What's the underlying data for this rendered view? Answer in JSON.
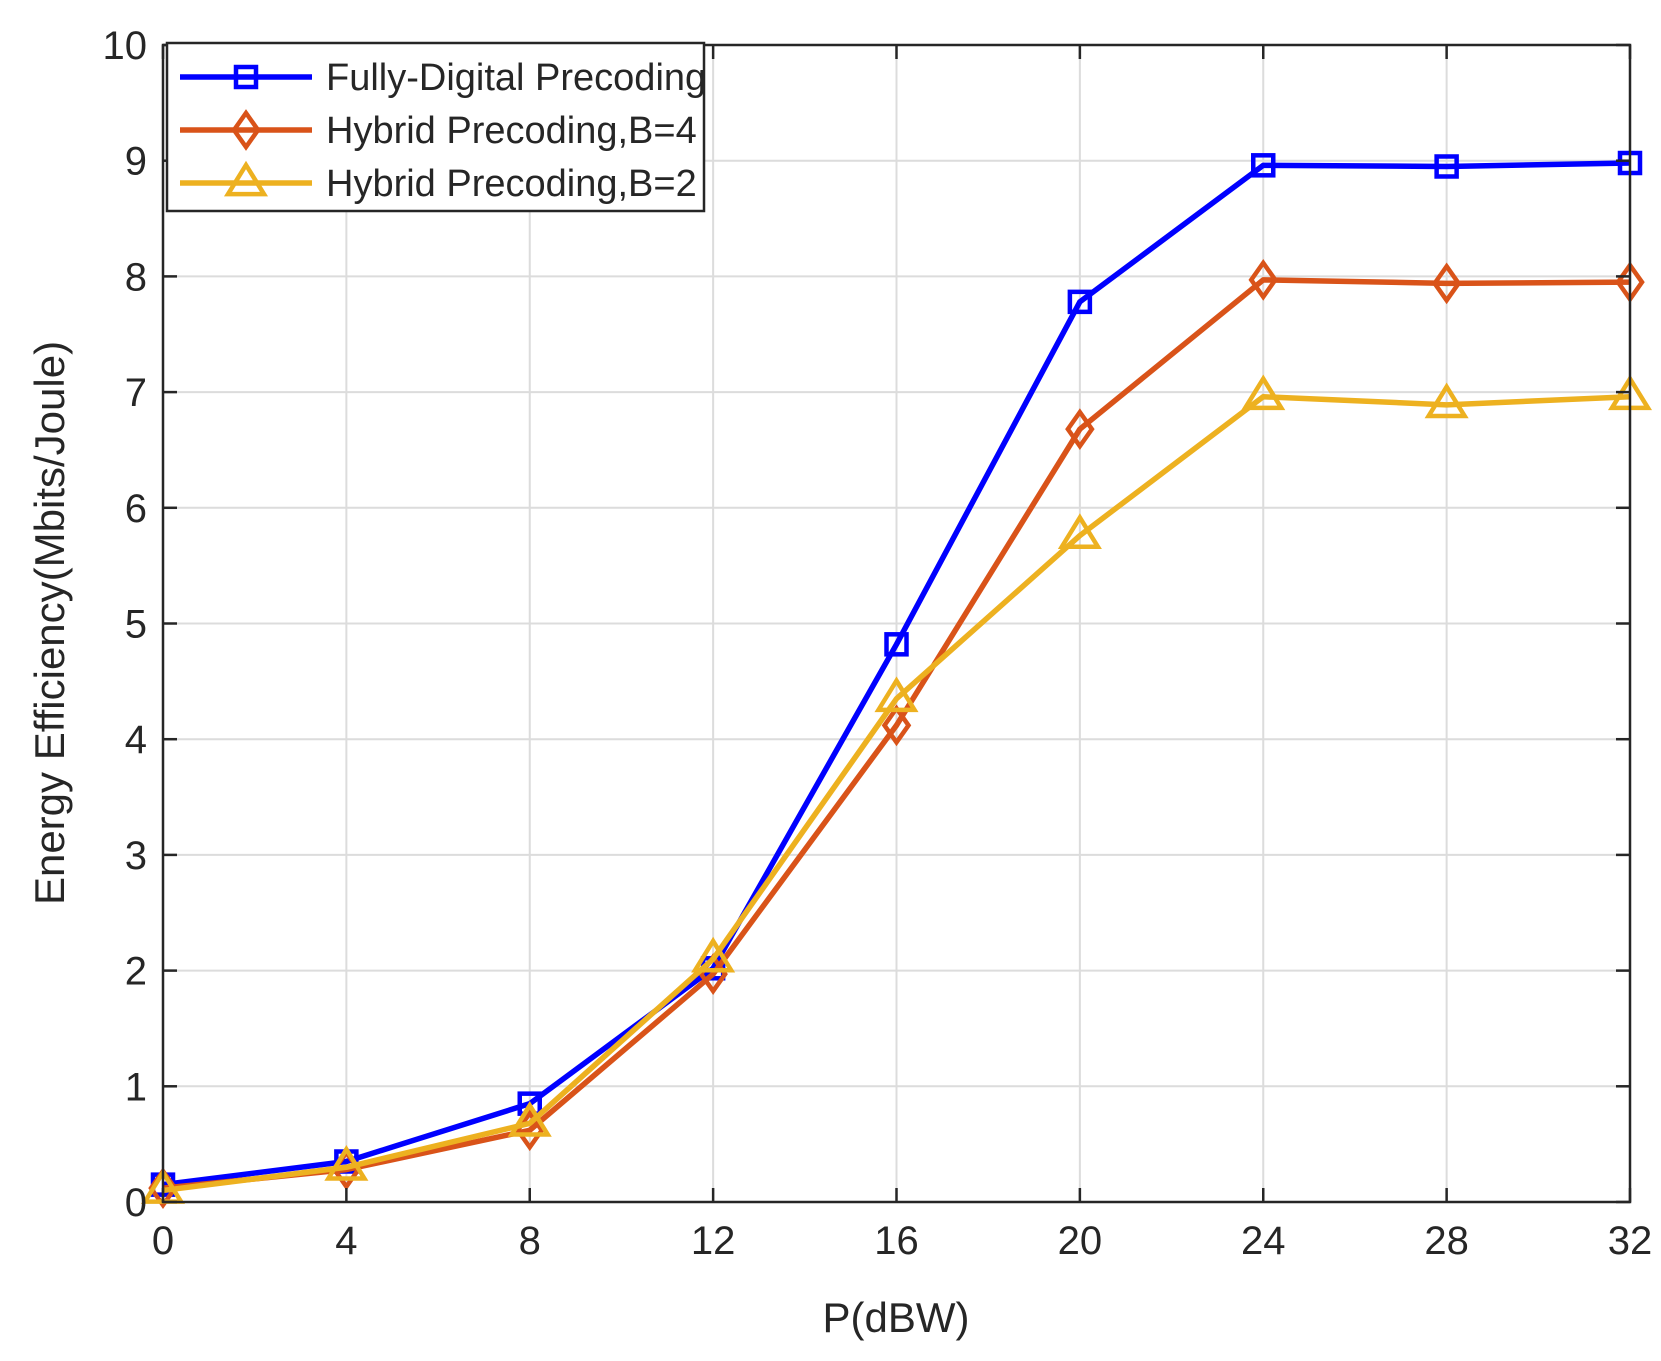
{
  "chart_data": {
    "type": "line",
    "title": "",
    "xlabel": "P(dBW)",
    "ylabel": "Energy Efficiency(Mbits/Joule)",
    "x": [
      0,
      4,
      8,
      12,
      16,
      20,
      24,
      28,
      32
    ],
    "xlim": [
      0,
      32
    ],
    "ylim": [
      0,
      10
    ],
    "xticks": [
      0,
      4,
      8,
      12,
      16,
      20,
      24,
      28,
      32
    ],
    "yticks": [
      0,
      1,
      2,
      3,
      4,
      5,
      6,
      7,
      8,
      9,
      10
    ],
    "grid": true,
    "legend_position": "top-left",
    "series": [
      {
        "name": "Fully-Digital Precoding",
        "color": "#0000ff",
        "marker": "square",
        "values": [
          0.15,
          0.35,
          0.85,
          2.02,
          4.82,
          7.78,
          8.96,
          8.95,
          8.98
        ]
      },
      {
        "name": "Hybrid Precoding,B=4",
        "color": "#d95319",
        "marker": "diamond",
        "values": [
          0.12,
          0.28,
          0.62,
          1.97,
          4.12,
          6.68,
          7.97,
          7.94,
          7.95
        ]
      },
      {
        "name": "Hybrid Precoding,B=2",
        "color": "#edb120",
        "marker": "triangle",
        "values": [
          0.1,
          0.3,
          0.68,
          2.1,
          4.35,
          5.76,
          6.96,
          6.89,
          6.96
        ]
      }
    ]
  }
}
